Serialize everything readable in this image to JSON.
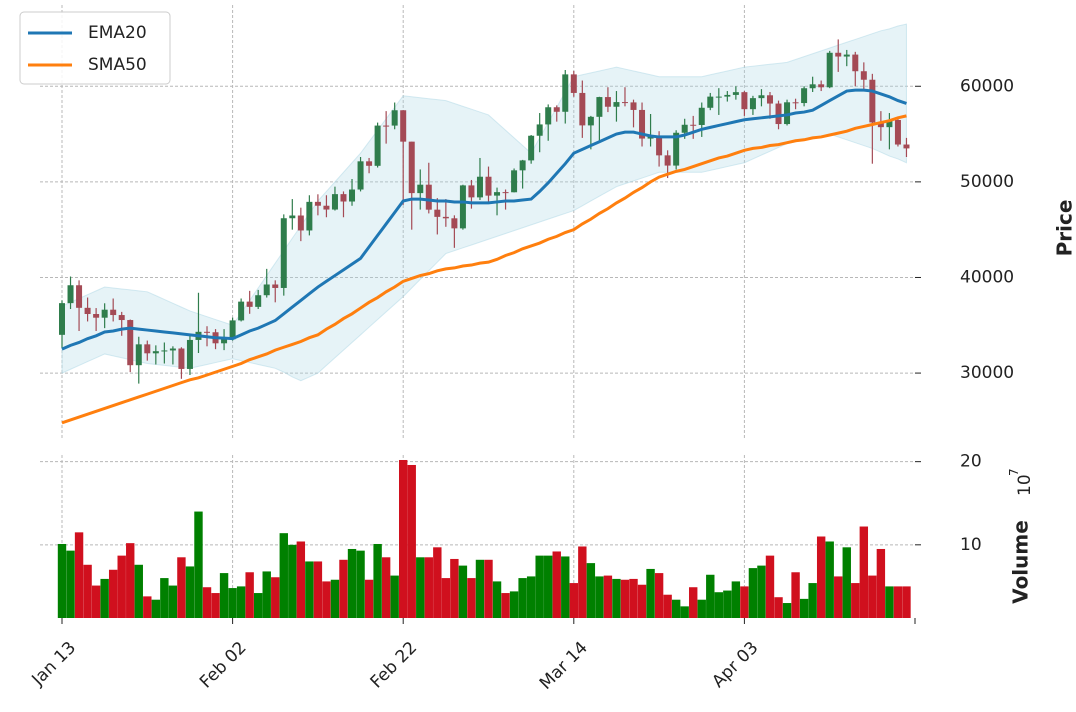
{
  "chart_data": {
    "type": "candlestick",
    "categories": [
      "Jan 13",
      null,
      null,
      null,
      null,
      null,
      null,
      null,
      null,
      null,
      null,
      null,
      null,
      null,
      null,
      null,
      null,
      null,
      null,
      null,
      "Feb 02",
      null,
      null,
      null,
      null,
      null,
      null,
      null,
      null,
      null,
      null,
      null,
      null,
      null,
      null,
      null,
      null,
      null,
      null,
      null,
      "Feb 22",
      null,
      null,
      null,
      null,
      null,
      null,
      null,
      null,
      null,
      null,
      null,
      null,
      null,
      null,
      null,
      null,
      null,
      null,
      null,
      "Mar 14",
      null,
      null,
      null,
      null,
      null,
      null,
      null,
      null,
      null,
      null,
      null,
      null,
      null,
      null,
      null,
      null,
      null,
      null,
      null,
      "Apr 03",
      null,
      null,
      null,
      null,
      null,
      null,
      null,
      null,
      null,
      null,
      null,
      null,
      null,
      null,
      null,
      null,
      null,
      null,
      null
    ],
    "open": [
      34000,
      37316,
      39187,
      36825,
      36178,
      35792,
      36630,
      36070,
      35548,
      30825,
      33005,
      32067,
      32289,
      32367,
      32569,
      30432,
      33466,
      34316,
      34270,
      33115,
      33537,
      35510,
      37473,
      36926,
      38144,
      39266,
      38903,
      46196,
      46481,
      44918,
      47909,
      47504,
      47105,
      48717,
      47945,
      49199,
      52149,
      51679,
      55888,
      55887,
      57491,
      54207,
      48824,
      49705,
      47093,
      46339,
      46188,
      45137,
      49631,
      48378,
      50538,
      48561,
      48927,
      48912,
      51206,
      52246,
      54824,
      56008,
      57805,
      57332,
      61243,
      59302,
      55907,
      56804,
      58870,
      57858,
      58346,
      58313,
      57523,
      54529,
      54738,
      52774,
      51704,
      55137,
      55973,
      55950,
      57750,
      58917,
      58918,
      59095,
      59384,
      57603,
      58758,
      59057,
      58192,
      56048,
      58323,
      58245,
      59793,
      60204,
      59893,
      63503,
      63109,
      63314,
      61572,
      60683,
      56216,
      55724,
      56473,
      53906
    ],
    "high": [
      37600,
      40100,
      39700,
      37900,
      36800,
      37300,
      37800,
      36400,
      35600,
      33800,
      33400,
      32900,
      33200,
      32800,
      32700,
      34000,
      38400,
      34900,
      34600,
      34600,
      35800,
      37800,
      38600,
      38700,
      40900,
      39700,
      46600,
      48200,
      47300,
      48600,
      48700,
      48600,
      49500,
      49000,
      50300,
      52600,
      52500,
      56200,
      57400,
      58300,
      57500,
      54200,
      51300,
      52000,
      48300,
      48200,
      46500,
      49700,
      50200,
      52500,
      51600,
      49400,
      49200,
      51400,
      52300,
      54900,
      57200,
      58100,
      58000,
      61700,
      61600,
      60600,
      56900,
      58900,
      59900,
      59500,
      59900,
      58600,
      58300,
      57100,
      55300,
      53300,
      55400,
      56600,
      56900,
      58300,
      59300,
      59800,
      59500,
      60000,
      59500,
      59000,
      59700,
      59400,
      58500,
      58600,
      58700,
      60000,
      61000,
      60600,
      63700,
      64900,
      63800,
      63600,
      62500,
      61300,
      57400,
      57200,
      56700,
      54600
    ],
    "low": [
      32600,
      36700,
      34400,
      35400,
      34400,
      34700,
      35400,
      33900,
      30100,
      28900,
      31300,
      30900,
      31000,
      30900,
      29400,
      29800,
      32100,
      32800,
      32500,
      32400,
      33400,
      35400,
      36200,
      36700,
      37900,
      37400,
      38100,
      45000,
      43800,
      44400,
      46500,
      46300,
      47000,
      46300,
      47500,
      49000,
      50900,
      51500,
      54000,
      55500,
      47600,
      45000,
      47100,
      46700,
      44500,
      45300,
      43100,
      45000,
      47200,
      48100,
      47900,
      46500,
      47100,
      48900,
      49300,
      51900,
      53100,
      54300,
      56300,
      56100,
      58900,
      54600,
      53400,
      54200,
      57300,
      56300,
      57900,
      55700,
      53700,
      53700,
      51600,
      50400,
      51300,
      54500,
      54500,
      54700,
      57500,
      57000,
      58400,
      58600,
      56900,
      57000,
      57900,
      56600,
      55500,
      55900,
      57600,
      57900,
      59400,
      59500,
      59800,
      61500,
      62100,
      60000,
      59700,
      51900,
      54300,
      53400,
      53700,
      52600
    ],
    "close": [
      37316,
      39187,
      36825,
      36178,
      35792,
      36630,
      36070,
      35548,
      30825,
      33005,
      32067,
      32289,
      32367,
      32569,
      30432,
      33466,
      34316,
      34270,
      33115,
      33537,
      35510,
      37473,
      36926,
      38144,
      39266,
      38903,
      46196,
      46481,
      44918,
      47909,
      47504,
      47105,
      48717,
      47945,
      49199,
      52149,
      51679,
      55888,
      55887,
      57491,
      54207,
      48824,
      49705,
      47093,
      46339,
      46188,
      45137,
      49631,
      48378,
      50538,
      48561,
      48927,
      48912,
      51206,
      52246,
      54824,
      56008,
      57805,
      57332,
      61243,
      59302,
      55907,
      56804,
      58870,
      57858,
      58346,
      58313,
      57523,
      54529,
      54738,
      52774,
      51704,
      55137,
      55973,
      55950,
      57750,
      58917,
      58918,
      59095,
      59384,
      57603,
      58758,
      59057,
      58192,
      56048,
      58323,
      58245,
      59793,
      60204,
      59893,
      63503,
      63109,
      63314,
      61572,
      60683,
      56216,
      55724,
      56473,
      53906,
      53500
    ],
    "up_color": "#2f7d4c",
    "down_color": "#a44a55",
    "lines": [
      {
        "name": "EMA20",
        "color": "#1f77b4",
        "values": [
          32500,
          32900,
          33200,
          33600,
          33900,
          34300,
          34400,
          34600,
          34700,
          34600,
          34500,
          34400,
          34300,
          34200,
          34100,
          34000,
          33900,
          33800,
          33700,
          33650,
          33600,
          34000,
          34400,
          34700,
          35100,
          35500,
          36200,
          36900,
          37600,
          38300,
          39000,
          39600,
          40200,
          40800,
          41400,
          42000,
          43200,
          44400,
          45600,
          46800,
          48000,
          48200,
          48200,
          48100,
          48000,
          48000,
          47900,
          47900,
          47800,
          47800,
          47800,
          47900,
          48000,
          48000,
          48100,
          48200,
          49000,
          49900,
          50900,
          51900,
          53000,
          53400,
          53800,
          54200,
          54600,
          55000,
          55200,
          55200,
          55000,
          54800,
          54700,
          54700,
          54700,
          54900,
          55200,
          55500,
          55700,
          55900,
          56100,
          56300,
          56500,
          56600,
          56700,
          56800,
          56900,
          57000,
          57200,
          57300,
          57500,
          58000,
          58500,
          59000,
          59500,
          59600,
          59600,
          59500,
          59200,
          58900,
          58500,
          58200
        ]
      },
      {
        "name": "SMA50",
        "color": "#ff7f0e",
        "values": [
          24800,
          25100,
          25400,
          25700,
          26000,
          26300,
          26600,
          26900,
          27200,
          27500,
          27800,
          28100,
          28400,
          28700,
          29000,
          29300,
          29500,
          29800,
          30100,
          30400,
          30700,
          31000,
          31400,
          31700,
          32000,
          32400,
          32700,
          33000,
          33300,
          33700,
          34000,
          34600,
          35100,
          35700,
          36200,
          36800,
          37400,
          37900,
          38500,
          39000,
          39600,
          39900,
          40200,
          40400,
          40700,
          40900,
          41000,
          41200,
          41300,
          41500,
          41600,
          41900,
          42300,
          42600,
          43000,
          43300,
          43600,
          44000,
          44300,
          44700,
          45000,
          45600,
          46100,
          46700,
          47200,
          47800,
          48300,
          48900,
          49400,
          50000,
          50500,
          50800,
          51100,
          51300,
          51600,
          51900,
          52200,
          52500,
          52700,
          53000,
          53300,
          53500,
          53600,
          53800,
          53900,
          54100,
          54300,
          54400,
          54600,
          54700,
          54900,
          55100,
          55300,
          55600,
          55800,
          56000,
          56200,
          56400,
          56700,
          56900
        ]
      }
    ],
    "band": {
      "color": "#add8e6",
      "upper": [
        37000,
        37400,
        37800,
        38200,
        38600,
        39000,
        38900,
        38800,
        38700,
        38600,
        38500,
        38100,
        37700,
        37300,
        36900,
        36500,
        36200,
        35900,
        35600,
        35300,
        35000,
        36300,
        37600,
        38900,
        40200,
        41500,
        42800,
        44100,
        45400,
        46700,
        48000,
        49000,
        50000,
        51000,
        52000,
        53000,
        54200,
        55400,
        56600,
        57800,
        59000,
        58900,
        58800,
        58700,
        58600,
        58500,
        58200,
        57900,
        57600,
        57300,
        57000,
        56200,
        55400,
        54600,
        53800,
        53000,
        54600,
        56200,
        57800,
        59400,
        61000,
        61200,
        61400,
        61600,
        61800,
        62000,
        61800,
        61600,
        61400,
        61200,
        61000,
        61000,
        61000,
        61000,
        61000,
        61000,
        61200,
        61400,
        61600,
        61800,
        62000,
        62100,
        62200,
        62300,
        62400,
        62500,
        62800,
        63100,
        63400,
        63700,
        64000,
        64300,
        64600,
        64900,
        65200,
        65500,
        65800,
        66000,
        66300,
        66500
      ],
      "lower": [
        30000,
        30400,
        30800,
        31200,
        31600,
        32000,
        31800,
        31600,
        31400,
        31200,
        31000,
        30900,
        30800,
        30700,
        30600,
        30500,
        30700,
        30900,
        31100,
        31300,
        31500,
        31300,
        31100,
        30900,
        30700,
        30500,
        30100,
        29600,
        29200,
        29600,
        30000,
        30800,
        31600,
        32400,
        33200,
        34000,
        34800,
        35600,
        36400,
        37200,
        38000,
        38900,
        39800,
        40700,
        41600,
        42500,
        42800,
        43100,
        43400,
        43700,
        44000,
        44300,
        44600,
        44900,
        45200,
        45500,
        45800,
        46100,
        46400,
        46700,
        47000,
        47500,
        48000,
        48500,
        49000,
        49500,
        49800,
        50100,
        50400,
        50700,
        51000,
        51000,
        51000,
        51000,
        51000,
        51000,
        51200,
        51400,
        51600,
        51800,
        52000,
        52400,
        52800,
        53200,
        53600,
        54000,
        54200,
        54400,
        54600,
        54800,
        55000,
        54700,
        54400,
        54100,
        53800,
        53500,
        53100,
        52700,
        52400,
        52000
      ]
    },
    "ylim": [
      23000,
      68500
    ],
    "yticks": [
      30000,
      40000,
      50000,
      60000
    ],
    "ylabel": "Price",
    "grid": true,
    "legend": "upper left",
    "volume": {
      "values": [
        10.1,
        9.3,
        11.5,
        7.6,
        5.1,
        5.9,
        7.0,
        8.7,
        10.2,
        7.6,
        3.8,
        3.4,
        6.0,
        5.1,
        8.5,
        7.4,
        14.0,
        4.9,
        4.2,
        6.6,
        4.8,
        5.0,
        6.7,
        4.2,
        6.8,
        6.1,
        11.4,
        10.0,
        10.4,
        8.0,
        8.0,
        5.6,
        5.8,
        8.2,
        9.5,
        9.3,
        5.8,
        10.1,
        8.5,
        6.3,
        20.2,
        19.6,
        8.5,
        8.5,
        9.7,
        6.0,
        8.3,
        7.5,
        6.0,
        8.2,
        8.2,
        5.6,
        4.2,
        4.4,
        6.0,
        6.2,
        8.7,
        8.7,
        9.2,
        8.6,
        5.4,
        9.8,
        7.8,
        6.2,
        6.3,
        5.9,
        5.8,
        5.9,
        5.2,
        7.1,
        6.6,
        4.0,
        3.4,
        2.6,
        4.9,
        3.4,
        6.4,
        4.3,
        4.5,
        5.6,
        5.0,
        7.2,
        7.5,
        8.7,
        3.7,
        3.0,
        6.7,
        3.5,
        5.4,
        11.0,
        10.4,
        6.2,
        9.7,
        5.4,
        12.2,
        6.3,
        9.5,
        5.0,
        5.0,
        5.0
      ],
      "ylim": [
        1.2,
        20.8
      ],
      "yticks": [
        10,
        20
      ],
      "ylabel": "Volume",
      "offset_base": "10",
      "offset_exponent": "7",
      "up_color": "#008000",
      "down_color": "#d0101e"
    }
  }
}
